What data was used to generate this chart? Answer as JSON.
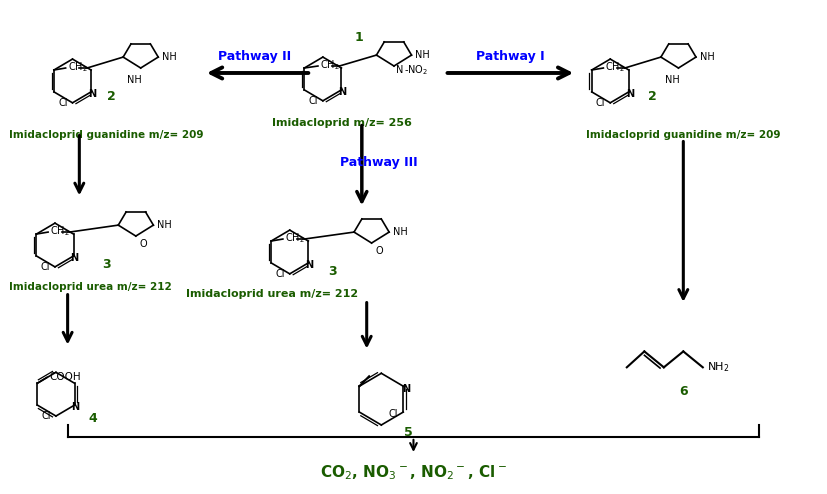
{
  "bg_color": "#ffffff",
  "dark_green": "#1a5c00",
  "blue": "#0000ff",
  "black": "#000000",
  "fig_width": 8.27,
  "fig_height": 4.94,
  "dpi": 100,
  "pathway1": "Pathway I",
  "pathway2": "Pathway II",
  "pathway3": "Pathway III",
  "label1": "Imidacloprid m/z= 256",
  "label2l": "Imidacloprid guanidine m/z= 209",
  "label2r": "Imidacloprid guanidine m/z= 209",
  "label3l": "Imidacloprid urea m/z= 212",
  "label3c": "Imidacloprid urea m/z= 212",
  "bottom_label": "CO$_2$, NO$_3$$^-$, NO$_2$$^-$, Cl$^-$"
}
